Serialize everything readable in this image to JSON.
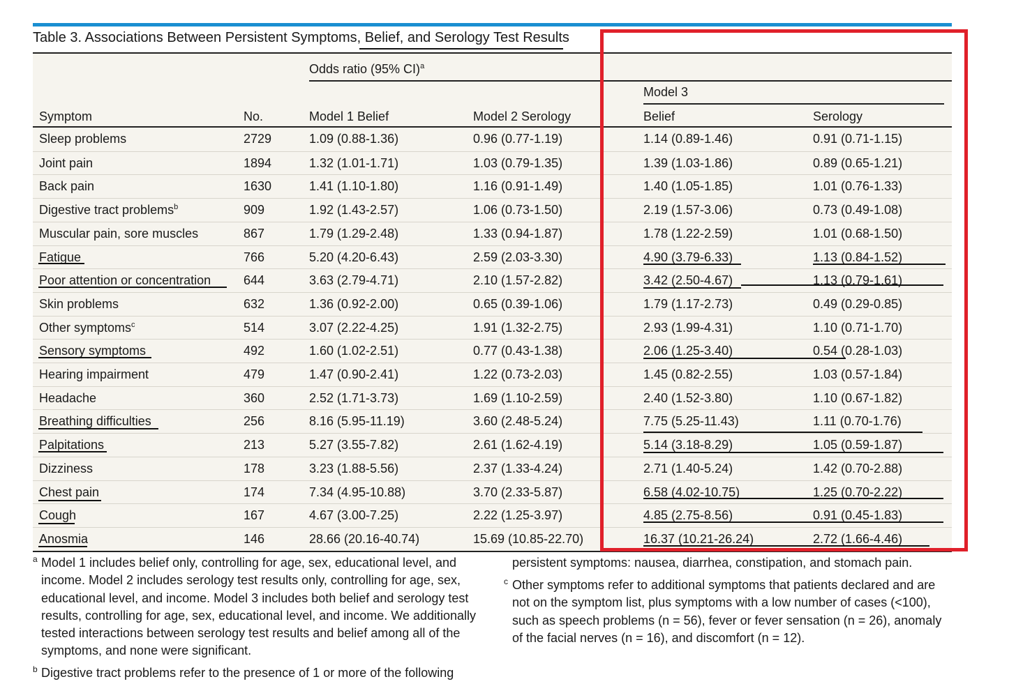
{
  "title": "Table 3. Associations Between Persistent Symptoms, Belief, and Serology Test Results",
  "headers": {
    "odds_ratio": "Odds ratio (95% CI)",
    "odds_ratio_sup": "a",
    "model3": "Model 3",
    "symptom": "Symptom",
    "no": "No.",
    "model1": "Model 1 Belief",
    "model2": "Model 2 Serology",
    "belief": "Belief",
    "serology": "Serology"
  },
  "rows": [
    {
      "symptom": "Sleep problems",
      "sup": "",
      "no": "2729",
      "m1": "1.09 (0.88-1.36)",
      "m2": "0.96 (0.77-1.19)",
      "belief": "1.14 (0.89-1.46)",
      "serology": "0.91 (0.71-1.15)"
    },
    {
      "symptom": "Joint pain",
      "sup": "",
      "no": "1894",
      "m1": "1.32 (1.01-1.71)",
      "m2": "1.03 (0.79-1.35)",
      "belief": "1.39 (1.03-1.86)",
      "serology": "0.89 (0.65-1.21)"
    },
    {
      "symptom": "Back pain",
      "sup": "",
      "no": "1630",
      "m1": "1.41 (1.10-1.80)",
      "m2": "1.16 (0.91-1.49)",
      "belief": "1.40 (1.05-1.85)",
      "serology": "1.01 (0.76-1.33)"
    },
    {
      "symptom": "Digestive tract problems",
      "sup": "b",
      "no": "909",
      "m1": "1.92 (1.43-2.57)",
      "m2": "1.06 (0.73-1.50)",
      "belief": "2.19 (1.57-3.06)",
      "serology": "0.73 (0.49-1.08)"
    },
    {
      "symptom": "Muscular pain, sore muscles",
      "sup": "",
      "no": "867",
      "m1": "1.79 (1.29-2.48)",
      "m2": "1.33 (0.94-1.87)",
      "belief": "1.78 (1.22-2.59)",
      "serology": "1.01 (0.68-1.50)"
    },
    {
      "symptom": "Fatigue",
      "sup": "",
      "no": "766",
      "m1": "5.20 (4.20-6.43)",
      "m2": "2.59 (2.03-3.30)",
      "belief": "4.90 (3.79-6.33)",
      "serology": "1.13 (0.84-1.52)"
    },
    {
      "symptom": "Poor attention or concentration",
      "sup": "",
      "no": "644",
      "m1": "3.63 (2.79-4.71)",
      "m2": "2.10 (1.57-2.82)",
      "belief": "3.42 (2.50-4.67)",
      "serology": "1.13 (0.79-1.61)"
    },
    {
      "symptom": "Skin problems",
      "sup": "",
      "no": "632",
      "m1": "1.36 (0.92-2.00)",
      "m2": "0.65 (0.39-1.06)",
      "belief": "1.79 (1.17-2.73)",
      "serology": "0.49 (0.29-0.85)"
    },
    {
      "symptom": "Other symptoms",
      "sup": "c",
      "no": "514",
      "m1": "3.07 (2.22-4.25)",
      "m2": "1.91 (1.32-2.75)",
      "belief": "2.93 (1.99-4.31)",
      "serology": "1.10 (0.71-1.70)"
    },
    {
      "symptom": "Sensory symptoms",
      "sup": "",
      "no": "492",
      "m1": "1.60 (1.02-2.51)",
      "m2": "0.77 (0.43-1.38)",
      "belief": "2.06 (1.25-3.40)",
      "serology": "0.54 (0.28-1.03)"
    },
    {
      "symptom": "Hearing impairment",
      "sup": "",
      "no": "479",
      "m1": "1.47 (0.90-2.41)",
      "m2": "1.22 (0.73-2.03)",
      "belief": "1.45 (0.82-2.55)",
      "serology": "1.03 (0.57-1.84)"
    },
    {
      "symptom": "Headache",
      "sup": "",
      "no": "360",
      "m1": "2.52 (1.71-3.73)",
      "m2": "1.69 (1.10-2.59)",
      "belief": "2.40 (1.52-3.80)",
      "serology": "1.10 (0.67-1.82)"
    },
    {
      "symptom": "Breathing difficulties",
      "sup": "",
      "no": "256",
      "m1": "8.16 (5.95-11.19)",
      "m2": "3.60 (2.48-5.24)",
      "belief": "7.75 (5.25-11.43)",
      "serology": "1.11 (0.70-1.76)"
    },
    {
      "symptom": "Palpitations",
      "sup": "",
      "no": "213",
      "m1": "5.27 (3.55-7.82)",
      "m2": "2.61 (1.62-4.19)",
      "belief": "5.14 (3.18-8.29)",
      "serology": "1.05 (0.59-1.87)"
    },
    {
      "symptom": "Dizziness",
      "sup": "",
      "no": "178",
      "m1": "3.23 (1.88-5.56)",
      "m2": "2.37 (1.33-4.24)",
      "belief": "2.71 (1.40-5.24)",
      "serology": "1.42 (0.70-2.88)"
    },
    {
      "symptom": "Chest pain",
      "sup": "",
      "no": "174",
      "m1": "7.34 (4.95-10.88)",
      "m2": "3.70 (2.33-5.87)",
      "belief": "6.58 (4.02-10.75)",
      "serology": "1.25 (0.70-2.22)"
    },
    {
      "symptom": "Cough",
      "sup": "",
      "no": "167",
      "m1": "4.67 (3.00-7.25)",
      "m2": "2.22 (1.25-3.97)",
      "belief": "4.85 (2.75-8.56)",
      "serology": "0.91 (0.45-1.83)"
    },
    {
      "symptom": "Anosmia",
      "sup": "",
      "no": "146",
      "m1": "28.66 (20.16-40.74)",
      "m2": "15.69 (10.85-22.70)",
      "belief": "16.37 (10.21-26.24)",
      "serology": "2.72 (1.66-4.46)"
    }
  ],
  "footnotes": {
    "a_mark": "a",
    "a": "Model 1 includes belief only, controlling for age, sex, educational level, and income. Model 2 includes serology test results only, controlling for age, sex, educational level, and income. Model 3 includes both belief and serology test results, controlling for age, sex, educational level, and income. We additionally tested interactions between serology test results and belief among all of the symptoms, and none were significant.",
    "b_mark": "b",
    "b": "Digestive tract problems refer to the presence of 1 or more of the following",
    "b_cont": "persistent symptoms: nausea, diarrhea, constipation, and stomach pain.",
    "c_mark": "c",
    "c": "Other symptoms refer to additional symptoms that patients declared and are not on the symptom list, plus symptoms with a low number of cases (<100), such as speech problems (n = 56), fever or fever sensation (n = 26), anomaly of the facial nerves (n = 16), and discomfort (n = 12)."
  },
  "colors": {
    "accent_rule": "#1a8fd1",
    "highlight_box": "#e0202a",
    "table_bg": "#f6f4ee"
  }
}
